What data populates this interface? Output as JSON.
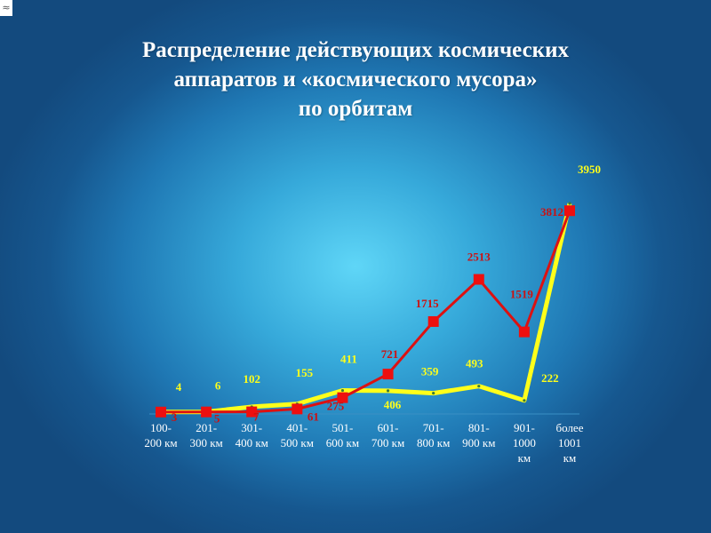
{
  "corner_icon": "approx-icon",
  "corner_symbol": "≈",
  "title_lines": [
    "Распределение  действующих космических",
    "аппаратов и «космического мусора»",
    "по орбитам"
  ],
  "chart_data": {
    "type": "line",
    "title": "Распределение  действующих космических аппаратов и «космического мусора» по орбитам",
    "categories": [
      [
        "100-",
        "200 км"
      ],
      [
        "201-",
        "300 км"
      ],
      [
        "301-",
        "400 км"
      ],
      [
        "401-",
        "500 км"
      ],
      [
        "501-",
        "600 км"
      ],
      [
        "601-",
        "700 км"
      ],
      [
        "701-",
        "800 км"
      ],
      [
        "801-",
        "900 км"
      ],
      [
        "901-",
        "1000",
        "км"
      ],
      [
        "более",
        "1001",
        "км"
      ]
    ],
    "series": [
      {
        "color": "#ffff1a",
        "values": [
          4,
          6,
          102,
          155,
          411,
          406,
          359,
          493,
          222,
          3950
        ],
        "labels": [
          "4",
          "6",
          "102",
          "155",
          "411",
          "406",
          "359",
          "493",
          "222",
          "3950"
        ],
        "label_color": "#ffff1a"
      },
      {
        "color": "#dd1111",
        "values": [
          3,
          5,
          7,
          61,
          275,
          721,
          1715,
          2513,
          1519,
          3812
        ],
        "labels": [
          "3",
          "5",
          "7",
          "61",
          "275",
          "721",
          "1715",
          "2513",
          "1519",
          "3812"
        ],
        "label_color": "#cc1111"
      }
    ],
    "ylim": [
      0,
      4000
    ],
    "grid": false,
    "legend": "none"
  }
}
